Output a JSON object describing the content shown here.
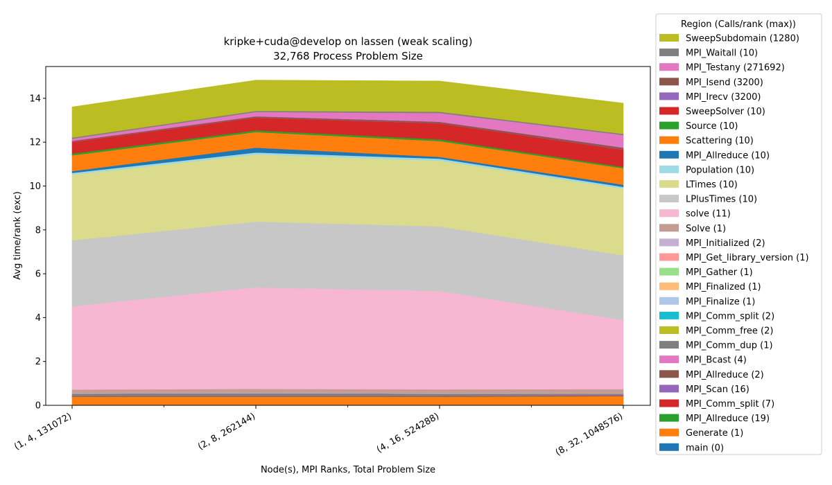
{
  "chart_data": {
    "type": "area",
    "title": "kripke+cuda@develop on lassen (weak scaling)",
    "subtitle": "32,768 Process Problem Size",
    "xlabel": "Node(s), MPI Ranks, Total Problem Size",
    "ylabel": "Avg time/rank (exc)",
    "categories": [
      "(1, 4, 131072)",
      "(2, 8, 262144)",
      "(4, 16, 524288)",
      "(8, 32, 1048576)"
    ],
    "ylim": [
      0,
      15.45
    ],
    "yticks": [
      0,
      2,
      4,
      6,
      8,
      10,
      12,
      14
    ],
    "grid": false,
    "legend": {
      "title": "Region (Calls/rank (max))",
      "placement": "outside-right"
    },
    "stack_order_bottom_to_top": true,
    "series": [
      {
        "name": "main (0)",
        "color": "#1f77b4",
        "values": [
          0.02,
          0.02,
          0.02,
          0.02
        ]
      },
      {
        "name": "Generate (1)",
        "color": "#ff7f0e",
        "values": [
          0.37,
          0.37,
          0.37,
          0.4
        ]
      },
      {
        "name": "MPI_Allreduce (19)",
        "color": "#2ca02c",
        "values": [
          0.01,
          0.01,
          0.01,
          0.01
        ]
      },
      {
        "name": "MPI_Comm_split (7)",
        "color": "#d62728",
        "values": [
          0.01,
          0.01,
          0.01,
          0.01
        ]
      },
      {
        "name": "MPI_Scan (16)",
        "color": "#9467bd",
        "values": [
          0.01,
          0.01,
          0.01,
          0.01
        ]
      },
      {
        "name": "MPI_Allreduce (2)",
        "color": "#8c564b",
        "values": [
          0.01,
          0.01,
          0.01,
          0.01
        ]
      },
      {
        "name": "MPI_Bcast (4)",
        "color": "#e377c2",
        "values": [
          0.01,
          0.01,
          0.01,
          0.01
        ]
      },
      {
        "name": "MPI_Comm_dup (1)",
        "color": "#7f7f7f",
        "values": [
          0.1,
          0.12,
          0.1,
          0.06
        ]
      },
      {
        "name": "MPI_Comm_free (2)",
        "color": "#bcbd22",
        "values": [
          0.0,
          0.0,
          0.0,
          0.0
        ]
      },
      {
        "name": "MPI_Comm_split (2)",
        "color": "#17becf",
        "values": [
          0.0,
          0.0,
          0.0,
          0.0
        ]
      },
      {
        "name": "MPI_Finalize (1)",
        "color": "#aec7e8",
        "values": [
          0.0,
          0.0,
          0.0,
          0.0
        ]
      },
      {
        "name": "MPI_Finalized (1)",
        "color": "#ffbb78",
        "values": [
          0.0,
          0.0,
          0.0,
          0.0
        ]
      },
      {
        "name": "MPI_Gather (1)",
        "color": "#98df8a",
        "values": [
          0.0,
          0.0,
          0.0,
          0.0
        ]
      },
      {
        "name": "MPI_Get_library_version (1)",
        "color": "#ff9896",
        "values": [
          0.0,
          0.0,
          0.0,
          0.0
        ]
      },
      {
        "name": "MPI_Initialized (2)",
        "color": "#c5b0d5",
        "values": [
          0.02,
          0.02,
          0.02,
          0.02
        ]
      },
      {
        "name": "Solve (1)",
        "color": "#c49c94",
        "values": [
          0.16,
          0.17,
          0.17,
          0.19
        ]
      },
      {
        "name": "solve (11)",
        "color": "#f7b6d2",
        "values": [
          3.8,
          4.63,
          4.48,
          3.15
        ]
      },
      {
        "name": "LPlusTimes (10)",
        "color": "#c7c7c7",
        "values": [
          3.0,
          3.0,
          2.95,
          2.95
        ]
      },
      {
        "name": "LTimes (10)",
        "color": "#dbdb8d",
        "values": [
          3.0,
          3.06,
          3.0,
          3.04
        ]
      },
      {
        "name": "Population (10)",
        "color": "#9edae5",
        "values": [
          0.08,
          0.09,
          0.09,
          0.08
        ]
      },
      {
        "name": "MPI_Allreduce (10)",
        "color": "#1f77b4",
        "values": [
          0.08,
          0.22,
          0.08,
          0.1
        ]
      },
      {
        "name": "Scattering (10)",
        "color": "#ff7f0e",
        "values": [
          0.72,
          0.71,
          0.72,
          0.75
        ]
      },
      {
        "name": "Source (10)",
        "color": "#2ca02c",
        "values": [
          0.08,
          0.08,
          0.08,
          0.06
        ]
      },
      {
        "name": "SweepSolver (10)",
        "color": "#d62728",
        "values": [
          0.53,
          0.58,
          0.73,
          0.79
        ]
      },
      {
        "name": "MPI_Irecv (3200)",
        "color": "#9467bd",
        "values": [
          0.01,
          0.01,
          0.01,
          0.01
        ]
      },
      {
        "name": "MPI_Isend (3200)",
        "color": "#8c564b",
        "values": [
          0.04,
          0.05,
          0.06,
          0.08
        ]
      },
      {
        "name": "MPI_Testany (271692)",
        "color": "#e377c2",
        "values": [
          0.1,
          0.2,
          0.4,
          0.58
        ]
      },
      {
        "name": "MPI_Waitall (10)",
        "color": "#7f7f7f",
        "values": [
          0.05,
          0.05,
          0.06,
          0.05
        ]
      },
      {
        "name": "SweepSubdomain (1280)",
        "color": "#bcbd22",
        "values": [
          1.4,
          1.4,
          1.4,
          1.4
        ]
      }
    ]
  }
}
